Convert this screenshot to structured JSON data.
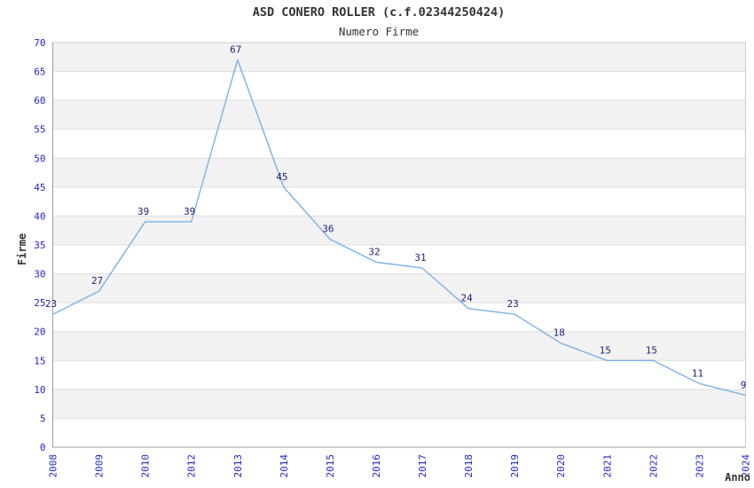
{
  "chart_data": {
    "type": "line",
    "title": "ASD CONERO ROLLER (c.f.02344250424)",
    "subtitle": "Numero Firme",
    "xlabel": "Anno",
    "ylabel": "Firme",
    "categories": [
      "2008",
      "2009",
      "2010",
      "2012",
      "2013",
      "2014",
      "2015",
      "2016",
      "2017",
      "2018",
      "2019",
      "2020",
      "2021",
      "2022",
      "2023",
      "2024"
    ],
    "values": [
      23,
      27,
      39,
      39,
      67,
      45,
      36,
      32,
      31,
      24,
      23,
      18,
      15,
      15,
      11,
      9
    ],
    "ylim": [
      0,
      70
    ],
    "ytick_step": 5,
    "grid": "horizontal-gridlines-with-alternating-bands",
    "legend": "none",
    "colors": {
      "line": "#7db1e6",
      "point_label": "#1e1e78",
      "tick_label": "#2424cc",
      "band": "#f2f2f2",
      "gridline": "#dddddd",
      "border": "#cccccc",
      "axis": "#a0a0a0",
      "title_text": "#333333",
      "background": "#ffffff"
    }
  }
}
